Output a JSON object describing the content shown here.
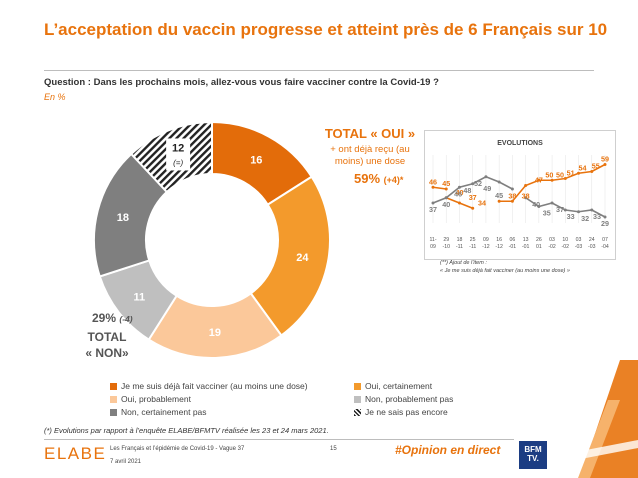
{
  "title": "L’acceptation du vaccin progresse et atteint près de 6 Français sur 10",
  "question": "Question : Dans les prochains mois, allez-vous vous faire vacciner contre la Covid-19 ?",
  "unit": "En %",
  "total_oui": {
    "label": "TOTAL « OUI »",
    "sub": "+ ont déjà reçu (au moins) une dose",
    "value": "59%",
    "change": "(+4)*"
  },
  "total_non": {
    "value": "29%",
    "change": "(-4)",
    "label_line1": "TOTAL",
    "label_line2": "« NON»"
  },
  "evolutions": {
    "title": "EVOLUTIONS",
    "x_labels": [
      [
        "11-",
        "09"
      ],
      [
        "29",
        "-10"
      ],
      [
        "18",
        "-11"
      ],
      [
        "25",
        "-11"
      ],
      [
        "09",
        "-12"
      ],
      [
        "16",
        "-12"
      ],
      [
        "06",
        "-01"
      ],
      [
        "13",
        "-01"
      ],
      [
        "26",
        "01"
      ],
      [
        "03",
        "-02"
      ],
      [
        "10",
        "-02"
      ],
      [
        "03",
        "-03"
      ],
      [
        "24",
        "-03"
      ],
      [
        "07",
        "-04"
      ]
    ],
    "x_heads": [
      "11-",
      "29",
      "18",
      "25",
      "09",
      "16",
      "06",
      "13",
      "26",
      "03",
      "10",
      "03",
      "24",
      "07"
    ],
    "x_tails": [
      "09",
      "-10",
      "-11",
      "-11",
      "-12",
      "-12",
      "-01",
      "-01",
      "01",
      "-02",
      "-02",
      "-03",
      "-03",
      "-04"
    ],
    "note_line1": "(**) Ajout de l’item :",
    "note_line2": "« Je me suis déjà fait vacciner (au moins une dose) »",
    "series": [
      {
        "values": [
          46,
          45,
          null,
          null,
          null,
          null,
          null,
          null,
          null,
          null,
          null,
          null,
          null,
          null
        ],
        "color": "#e8730d"
      },
      {
        "values": [
          null,
          40,
          37,
          34,
          null,
          38,
          38,
          47,
          50,
          50,
          51,
          54,
          55,
          59
        ],
        "color": "#e8730d"
      },
      {
        "values": [
          37,
          40,
          46,
          48,
          52,
          49,
          45,
          null,
          null,
          null,
          null,
          null,
          null,
          null
        ],
        "color": "#7f7f7f"
      },
      {
        "values": [
          null,
          null,
          null,
          null,
          null,
          null,
          null,
          40,
          35,
          37,
          33,
          32,
          33,
          29
        ],
        "color": "#7f7f7f"
      }
    ],
    "labels": [
      {
        "t": "46",
        "i": 0,
        "v": 46,
        "c": "#e8730d"
      },
      {
        "t": "45",
        "i": 1,
        "v": 45,
        "c": "#e8730d"
      },
      {
        "t": "40",
        "i": 2,
        "v": 40,
        "c": "#e8730d"
      },
      {
        "t": "37",
        "i": 3,
        "v": 37,
        "c": "#e8730d"
      },
      {
        "t": "34",
        "i": 3.7,
        "v": 34,
        "c": "#e8730d"
      },
      {
        "t": "38",
        "i": 6,
        "v": 38,
        "c": "#e8730d"
      },
      {
        "t": "38",
        "i": 7,
        "v": 38,
        "c": "#e8730d"
      },
      {
        "t": "47",
        "i": 8,
        "v": 47,
        "c": "#e8730d"
      },
      {
        "t": "50",
        "i": 8.8,
        "v": 50,
        "c": "#e8730d"
      },
      {
        "t": "50",
        "i": 9.6,
        "v": 50,
        "c": "#e8730d"
      },
      {
        "t": "51",
        "i": 10.4,
        "v": 51,
        "c": "#e8730d"
      },
      {
        "t": "54",
        "i": 11.3,
        "v": 54,
        "c": "#e8730d"
      },
      {
        "t": "55",
        "i": 12.3,
        "v": 55,
        "c": "#e8730d"
      },
      {
        "t": "59",
        "i": 13,
        "v": 59,
        "c": "#e8730d"
      },
      {
        "t": "37",
        "i": 0,
        "v": 37,
        "c": "#7f7f7f"
      },
      {
        "t": "40",
        "i": 1,
        "v": 40,
        "c": "#7f7f7f"
      },
      {
        "t": "46",
        "i": 1.9,
        "v": 46,
        "c": "#7f7f7f"
      },
      {
        "t": "48",
        "i": 2.6,
        "v": 48,
        "c": "#7f7f7f"
      },
      {
        "t": "52",
        "i": 3.4,
        "v": 52,
        "c": "#7f7f7f"
      },
      {
        "t": "49",
        "i": 4.1,
        "v": 49,
        "c": "#7f7f7f"
      },
      {
        "t": "45",
        "i": 5,
        "v": 45,
        "c": "#7f7f7f"
      },
      {
        "t": "40",
        "i": 7.8,
        "v": 40,
        "c": "#7f7f7f"
      },
      {
        "t": "35",
        "i": 8.6,
        "v": 35,
        "c": "#7f7f7f"
      },
      {
        "t": "37",
        "i": 9.6,
        "v": 37,
        "c": "#7f7f7f"
      },
      {
        "t": "33",
        "i": 10.4,
        "v": 33,
        "c": "#7f7f7f"
      },
      {
        "t": "32",
        "i": 11.5,
        "v": 32,
        "c": "#7f7f7f"
      },
      {
        "t": "33",
        "i": 12.4,
        "v": 33,
        "c": "#7f7f7f"
      },
      {
        "t": "29",
        "i": 13,
        "v": 29,
        "c": "#7f7f7f"
      }
    ]
  },
  "legend": [
    {
      "label": "Je me suis déjà fait vacciner (au moins une dose)",
      "color": "#e36c0a",
      "hatch": false
    },
    {
      "label": "Oui, certainement",
      "color": "#f39a2c",
      "hatch": false
    },
    {
      "label": "Oui, probablement",
      "color": "#fbc89a",
      "hatch": false
    },
    {
      "label": "Non, probablement pas",
      "color": "#bfbfbf",
      "hatch": false
    },
    {
      "label": "Non, certainement pas",
      "color": "#7f7f7f",
      "hatch": false
    },
    {
      "label": "Je ne sais pas encore",
      "color": "#222222",
      "hatch": true
    }
  ],
  "footnote": "(*) Evolutions par rapport à l’enquête ELABE/BFMTV réalisée les 23 et 24 mars 2021.",
  "footer": {
    "logo": "ELABE",
    "study": "Les Français et l’épidémie de Covid-19 - Vague 37",
    "date": "7 avril 2021",
    "page": "15",
    "hashtag": "#Opinion en direct",
    "brand_line1": "BFM",
    "brand_line2": "TV."
  },
  "chart_data": {
    "type": "pie",
    "categories": [
      "Je me suis déjà fait vacciner (au moins une dose)",
      "Oui, certainement",
      "Oui, probablement",
      "Non, probablement pas",
      "Non, certainement pas",
      "Je ne sais pas encore"
    ],
    "values": [
      16,
      24,
      19,
      11,
      18,
      12
    ],
    "value_labels": [
      "16",
      "24",
      "19",
      "11",
      "18",
      "12"
    ],
    "colors": [
      "#e36c0a",
      "#f39a2c",
      "#fbc89a",
      "#bfbfbf",
      "#7f7f7f",
      "#222222"
    ],
    "extra_labels": {
      "dont_know_change": "(=)"
    }
  }
}
